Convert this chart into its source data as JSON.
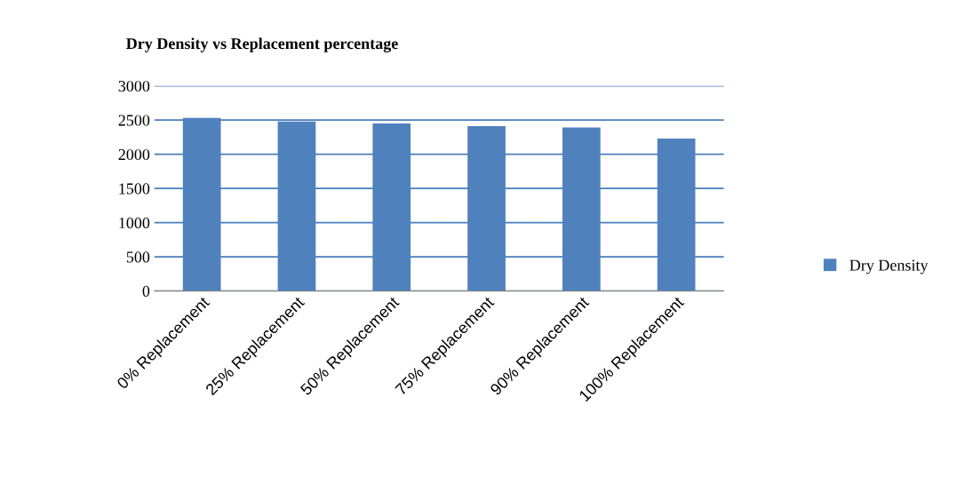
{
  "chart_data": {
    "type": "bar",
    "title": "Dry Density vs Replacement percentage",
    "categories": [
      "0% Replacement",
      "25% Replacement",
      "50% Replacement",
      "75% Replacement",
      "90% Replacement",
      "100% Replacement"
    ],
    "series": [
      {
        "name": "Dry Density",
        "color": "#4f81bd",
        "values": [
          2530,
          2480,
          2450,
          2410,
          2390,
          2230
        ]
      }
    ],
    "ylim": [
      0,
      3000
    ],
    "yticks": [
      0,
      500,
      1000,
      1500,
      2000,
      2500,
      3000
    ],
    "grid": "y",
    "legend": "right"
  }
}
